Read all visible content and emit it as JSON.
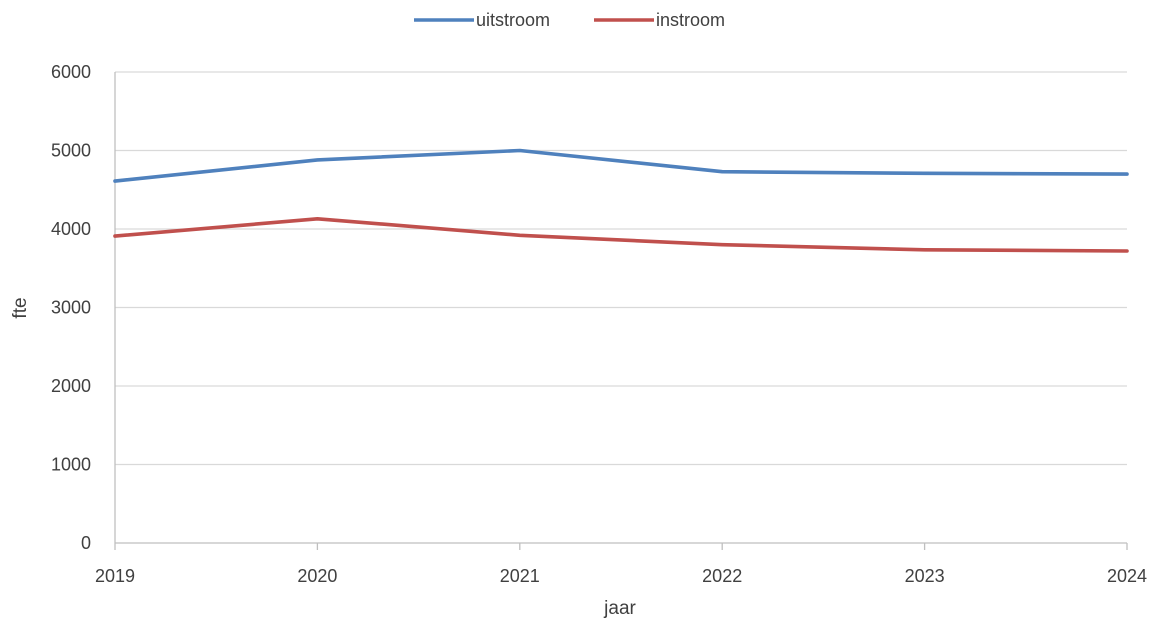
{
  "chart_data": {
    "type": "line",
    "title": "",
    "xlabel": "jaar",
    "ylabel": "fte",
    "x": [
      2019,
      2020,
      2021,
      2022,
      2023,
      2024
    ],
    "x_tick_labels": [
      "2019",
      "2020",
      "2021",
      "2022",
      "2023",
      "2024"
    ],
    "ylim": [
      0,
      6000
    ],
    "y_ticks": [
      0,
      1000,
      2000,
      3000,
      4000,
      5000,
      6000
    ],
    "y_tick_labels": [
      "0",
      "1000",
      "2000",
      "3000",
      "4000",
      "5000",
      "6000"
    ],
    "grid": "horizontal",
    "legend_position": "top-center",
    "series": [
      {
        "name": "uitstroom",
        "color": "#4F81BD",
        "values": [
          4610,
          4880,
          5000,
          4730,
          4710,
          4700
        ]
      },
      {
        "name": "instroom",
        "color": "#C0504D",
        "values": [
          3910,
          4130,
          3920,
          3800,
          3735,
          3720
        ]
      }
    ]
  }
}
